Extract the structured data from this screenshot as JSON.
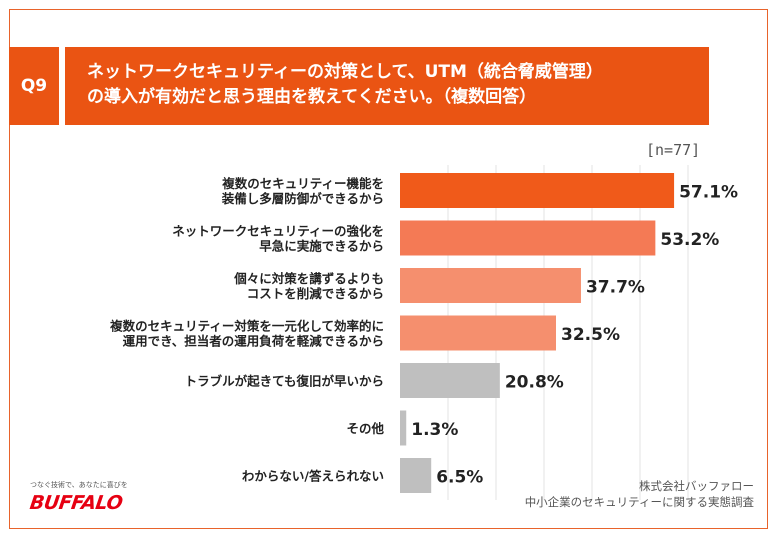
{
  "question": {
    "number": "Q9",
    "title_line1": "ネットワークセキュリティーの対策として、UTM（統合脅威管理）",
    "title_line2": "の導入が有効だと思う理由を教えてください。（複数回答）"
  },
  "sample_size": "[n=77]",
  "chart_data": {
    "type": "bar",
    "orientation": "horizontal",
    "unit": "%",
    "categories": [
      [
        "複数のセキュリティー機能を",
        "装備し多層防御ができるから"
      ],
      [
        "ネットワークセキュリティーの強化を",
        "早急に実施できるから"
      ],
      [
        "個々に対策を講ずるよりも",
        "コストを削減できるから"
      ],
      [
        "複数のセキュリティー対策を一元化して効率的に",
        "運用でき、担当者の運用負荷を軽減できるから"
      ],
      [
        "トラブルが起きても復旧が早いから"
      ],
      [
        "その他"
      ],
      [
        "わからない/答えられない"
      ]
    ],
    "values": [
      57.1,
      53.2,
      37.7,
      32.5,
      20.8,
      1.3,
      6.5
    ],
    "value_labels": [
      "57.1%",
      "53.2%",
      "37.7%",
      "32.5%",
      "20.8%",
      "1.3%",
      "6.5%"
    ],
    "colors": [
      "#f05a1a",
      "#f47a55",
      "#f58f6e",
      "#f58f6e",
      "#bfbfbf",
      "#bfbfbf",
      "#bfbfbf"
    ],
    "xlim": [
      0,
      100
    ],
    "grid": true
  },
  "source": {
    "line1": "株式会社バッファロー",
    "line2": "中小企業のセキュリティーに関する実態調査"
  },
  "logo": {
    "tagline": "つなぐ技術で、あなたに喜びを",
    "brand": "BUFFALO"
  }
}
